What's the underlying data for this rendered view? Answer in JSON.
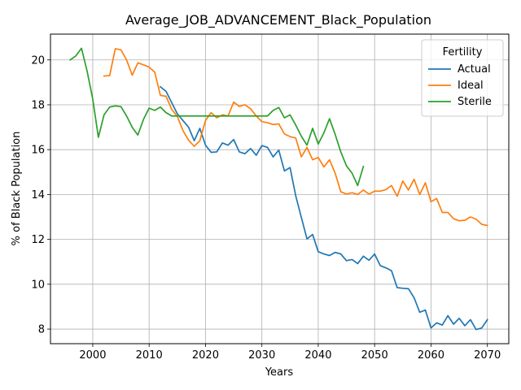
{
  "chart_data": {
    "type": "line",
    "title": "Average_JOB_ADVANCEMENT_Black_Population",
    "xlabel": "Years",
    "ylabel": "% of Black Population",
    "xlim": [
      1992.5,
      2073.8
    ],
    "ylim": [
      7.35,
      21.15
    ],
    "xticks": [
      2000,
      2010,
      2020,
      2030,
      2040,
      2050,
      2060,
      2070
    ],
    "yticks": [
      8,
      10,
      12,
      14,
      16,
      18,
      20
    ],
    "grid": true,
    "legend": {
      "title": "Fertility",
      "position": "top-right"
    },
    "series": [
      {
        "name": "Actual",
        "color": "#1f77b4",
        "x": [
          2012,
          2013,
          2014,
          2015,
          2016,
          2017,
          2018,
          2019,
          2020,
          2021,
          2022,
          2023,
          2024,
          2025,
          2026,
          2027,
          2028,
          2029,
          2030,
          2031,
          2032,
          2033,
          2034,
          2035,
          2036,
          2037,
          2038,
          2039,
          2040,
          2041,
          2042,
          2043,
          2044,
          2045,
          2046,
          2047,
          2048,
          2049,
          2050,
          2051,
          2052,
          2053,
          2054,
          2055,
          2056,
          2057,
          2058,
          2059,
          2060,
          2061,
          2062,
          2063,
          2064,
          2065,
          2066,
          2067,
          2068,
          2069,
          2070
        ],
        "y": [
          18.8,
          18.6,
          18.1,
          17.6,
          17.3,
          17.0,
          16.4,
          16.95,
          16.2,
          15.88,
          15.9,
          16.3,
          16.2,
          16.45,
          15.9,
          15.82,
          16.05,
          15.75,
          16.18,
          16.1,
          15.68,
          15.98,
          15.05,
          15.2,
          13.95,
          12.98,
          12.02,
          12.22,
          11.45,
          11.35,
          11.28,
          11.42,
          11.35,
          11.05,
          11.1,
          10.92,
          11.25,
          11.07,
          11.35,
          10.83,
          10.73,
          10.6,
          9.85,
          9.82,
          9.8,
          9.4,
          8.75,
          8.85,
          8.05,
          8.28,
          8.18,
          8.6,
          8.22,
          8.48,
          8.15,
          8.42,
          7.98,
          8.05,
          8.42
        ]
      },
      {
        "name": "Ideal",
        "color": "#ff7f0e",
        "x": [
          2002,
          2003,
          2004,
          2005,
          2006,
          2007,
          2008,
          2009,
          2010,
          2011,
          2012,
          2013,
          2014,
          2015,
          2016,
          2017,
          2018,
          2019,
          2020,
          2021,
          2022,
          2023,
          2024,
          2025,
          2026,
          2027,
          2028,
          2029,
          2030,
          2031,
          2032,
          2033,
          2034,
          2035,
          2036,
          2037,
          2038,
          2039,
          2040,
          2041,
          2042,
          2043,
          2044,
          2045,
          2046,
          2047,
          2048,
          2049,
          2050,
          2051,
          2052,
          2053,
          2054,
          2055,
          2056,
          2057,
          2058,
          2059,
          2060,
          2061,
          2062,
          2063,
          2064,
          2065,
          2066,
          2067,
          2068,
          2069,
          2070
        ],
        "y": [
          19.28,
          19.3,
          20.5,
          20.45,
          20.0,
          19.32,
          19.87,
          19.78,
          19.68,
          19.45,
          18.42,
          18.38,
          17.8,
          17.48,
          16.85,
          16.42,
          16.15,
          16.4,
          17.3,
          17.65,
          17.42,
          17.55,
          17.5,
          18.12,
          17.93,
          18.0,
          17.82,
          17.5,
          17.25,
          17.2,
          17.12,
          17.15,
          16.7,
          16.58,
          16.52,
          15.68,
          16.1,
          15.55,
          15.65,
          15.23,
          15.55,
          14.95,
          14.12,
          14.02,
          14.08,
          14.0,
          14.2,
          14.02,
          14.15,
          14.15,
          14.22,
          14.4,
          13.92,
          14.6,
          14.2,
          14.68,
          14.0,
          14.52,
          13.68,
          13.82,
          13.2,
          13.2,
          12.92,
          12.83,
          12.85,
          13.0,
          12.9,
          12.67,
          12.62
        ]
      },
      {
        "name": "Sterile",
        "color": "#2ca02c",
        "x": [
          1996,
          1997,
          1998,
          1999,
          2000,
          2001,
          2002,
          2003,
          2004,
          2005,
          2006,
          2007,
          2008,
          2009,
          2010,
          2011,
          2012,
          2013,
          2014,
          2015,
          2016,
          2017,
          2018,
          2019,
          2020,
          2021,
          2022,
          2023,
          2024,
          2025,
          2026,
          2027,
          2028,
          2029,
          2030,
          2031,
          2032,
          2033,
          2034,
          2035,
          2036,
          2037,
          2038,
          2039,
          2040,
          2041,
          2042,
          2043,
          2044,
          2045,
          2046,
          2047,
          2048
        ],
        "y": [
          20.0,
          20.18,
          20.52,
          19.5,
          18.25,
          16.55,
          17.55,
          17.9,
          17.95,
          17.92,
          17.5,
          17.0,
          16.65,
          17.35,
          17.85,
          17.75,
          17.9,
          17.65,
          17.5,
          17.5,
          17.5,
          17.5,
          17.5,
          17.5,
          17.5,
          17.5,
          17.5,
          17.5,
          17.5,
          17.5,
          17.5,
          17.5,
          17.5,
          17.5,
          17.5,
          17.5,
          17.75,
          17.88,
          17.42,
          17.55,
          17.1,
          16.6,
          16.2,
          16.95,
          16.25,
          16.75,
          17.38,
          16.68,
          15.9,
          15.28,
          14.95,
          14.4,
          15.25
        ]
      }
    ]
  }
}
